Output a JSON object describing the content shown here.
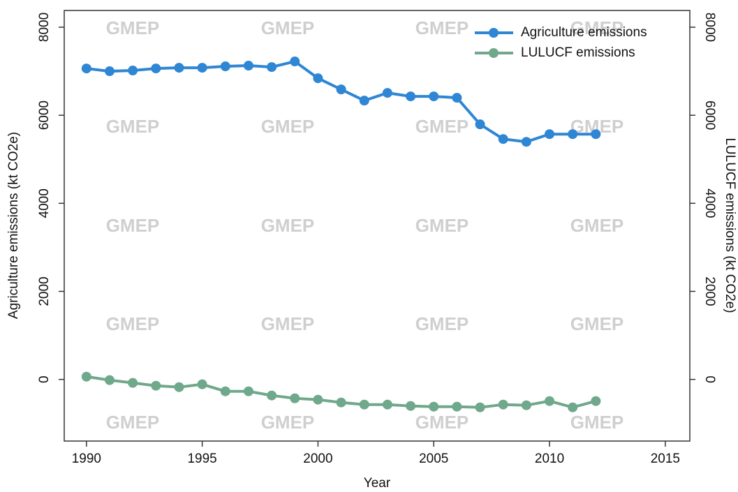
{
  "chart_data": {
    "type": "line",
    "x_label": "Year",
    "y_label": "Agriculture emissions (kt CO2e)",
    "y2_label": "LULUCF emissions (kt CO2e)",
    "watermark": "GMEP",
    "x": [
      1990,
      1991,
      1992,
      1993,
      1994,
      1995,
      1996,
      1997,
      1998,
      1999,
      2000,
      2001,
      2002,
      2003,
      2004,
      2005,
      2006,
      2007,
      2008,
      2009,
      2010,
      2011,
      2012
    ],
    "series": [
      {
        "name": "Agriculture emissions",
        "color": "#2e86d4",
        "values": [
          7063,
          7000,
          7016,
          7063,
          7079,
          7079,
          7111,
          7127,
          7095,
          7222,
          6841,
          6587,
          6333,
          6508,
          6429,
          6429,
          6397,
          5794,
          5460,
          5397,
          5571,
          5571,
          5571
        ]
      },
      {
        "name": "LULUCF emissions",
        "color": "#6fa88a",
        "axis": "y2",
        "values": [
          63,
          -16,
          -79,
          -143,
          -175,
          -111,
          -270,
          -270,
          -365,
          -429,
          -460,
          -524,
          -571,
          -571,
          -603,
          -619,
          -619,
          -635,
          -571,
          -587,
          -492,
          -635,
          -492
        ]
      }
    ],
    "xlim": [
      1989.04,
      2016.06
    ],
    "xticks": [
      1990,
      1995,
      2000,
      2005,
      2010,
      2015
    ],
    "ylim": [
      -1400,
      8380
    ],
    "yticks": [
      0,
      2000,
      4000,
      6000,
      8000
    ],
    "y2lim": [
      -1400,
      8380
    ],
    "y2ticks": [
      0,
      2000,
      4000,
      6000,
      8000
    ],
    "legend": "upper right",
    "grid": false
  }
}
